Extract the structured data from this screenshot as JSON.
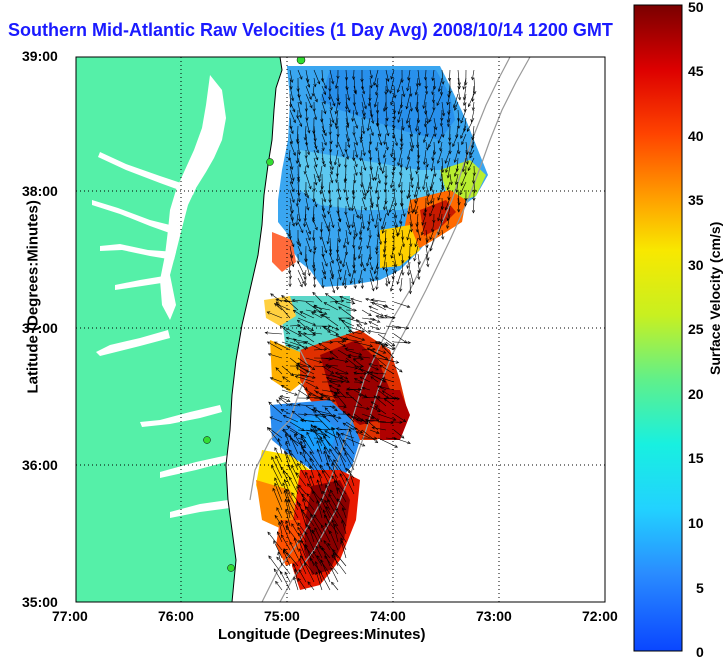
{
  "title": "Southern Mid-Atlantic Raw Velocities (1 Day Avg) 2008/10/14 1200 GMT",
  "axes": {
    "xlabel": "Longitude (Degrees:Minutes)",
    "ylabel": "Latitude (Degrees:Minutes)",
    "x_ticks": [
      "77:00",
      "76:00",
      "75:00",
      "74:00",
      "73:00",
      "72:00"
    ],
    "y_ticks": [
      "39:00",
      "38:00",
      "37:00",
      "36:00",
      "35:00"
    ]
  },
  "colorbar": {
    "label": "Surface Velocity (cm/s)",
    "ticks": [
      "50",
      "45",
      "40",
      "35",
      "30",
      "25",
      "20",
      "15",
      "10",
      "5",
      "0"
    ],
    "min": 0,
    "max": 50
  },
  "colors": {
    "land": "#55f0a8",
    "water": "#ffffff",
    "title": "#1a1aff",
    "frame": "#000000"
  }
}
